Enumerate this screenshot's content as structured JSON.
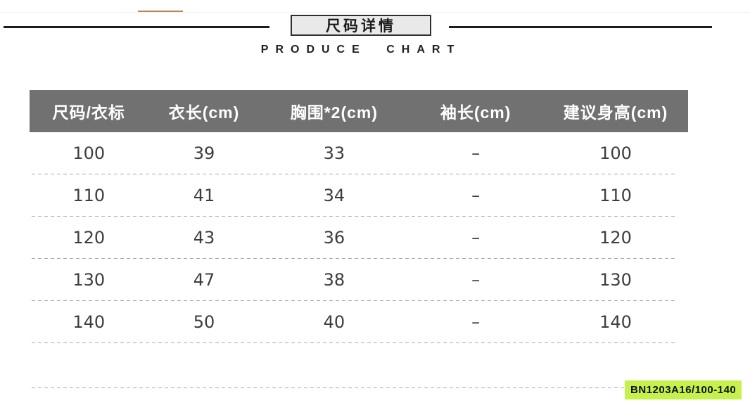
{
  "header": {
    "title": "尺码详情",
    "subtitle": "PRODUCE CHART"
  },
  "table": {
    "headers": [
      "尺码/衣标",
      "衣长(cm)",
      "胸围*2(cm)",
      "袖长(cm)",
      "建议身高(cm)"
    ],
    "rows": [
      [
        "100",
        "39",
        "33",
        "–",
        "100"
      ],
      [
        "110",
        "41",
        "34",
        "–",
        "110"
      ],
      [
        "120",
        "43",
        "36",
        "–",
        "120"
      ],
      [
        "130",
        "47",
        "38",
        "–",
        "130"
      ],
      [
        "140",
        "50",
        "40",
        "–",
        "140"
      ]
    ]
  },
  "footer": {
    "sku": "BN1203A16/100-140"
  },
  "colors": {
    "table_header_bg": "#717171",
    "sku_highlight": "#c6f04c",
    "accent_line": "#c08552",
    "title_box_bg": "#e9e9e9",
    "rule_black": "#1c1c1c",
    "dash_gray": "#a8a8a8"
  },
  "chart_data": {
    "type": "table",
    "title": "尺码详情",
    "subtitle": "PRODUCE CHART",
    "columns": [
      "尺码/衣标",
      "衣长(cm)",
      "胸围*2(cm)",
      "袖长(cm)",
      "建议身高(cm)"
    ],
    "rows": [
      [
        "100",
        "39",
        "33",
        "–",
        "100"
      ],
      [
        "110",
        "41",
        "34",
        "–",
        "110"
      ],
      [
        "120",
        "43",
        "36",
        "–",
        "120"
      ],
      [
        "130",
        "47",
        "38",
        "–",
        "130"
      ],
      [
        "140",
        "50",
        "40",
        "–",
        "140"
      ]
    ],
    "annotations": [
      "BN1203A16/100-140"
    ]
  }
}
